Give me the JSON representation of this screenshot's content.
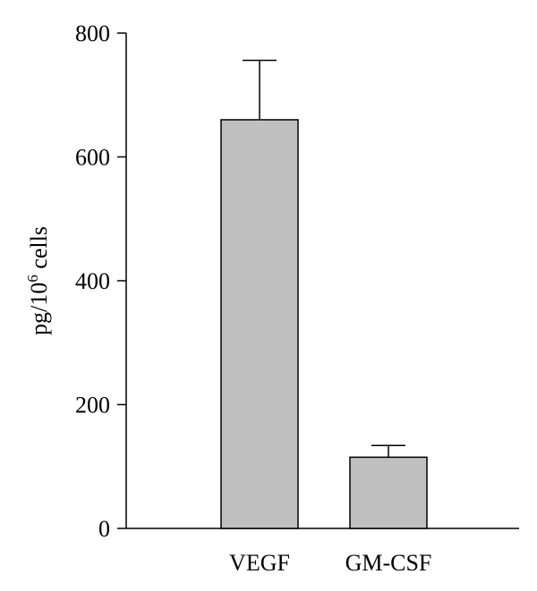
{
  "chart_data": {
    "type": "bar",
    "categories": [
      "VEGF",
      "GM-CSF"
    ],
    "values": [
      660,
      115
    ],
    "error_plus": [
      96,
      19
    ],
    "ylabel": {
      "prefix": "pg/10",
      "superscript": "6",
      "suffix": " cells"
    },
    "ylim": [
      0,
      800
    ],
    "yticks": [
      "0",
      "200",
      "400",
      "600",
      "800"
    ],
    "grid": false,
    "legend": "none",
    "bar_color": "#c0c0c0"
  }
}
